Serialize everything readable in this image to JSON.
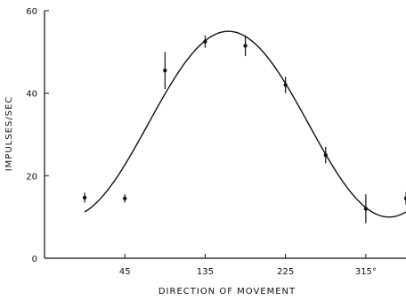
{
  "chart_data": {
    "type": "scatter",
    "title": "",
    "xlabel": "DIRECTION OF MOVEMENT",
    "ylabel": "IMPULSES/SEC",
    "xlim": [
      -45,
      360
    ],
    "ylim": [
      0,
      60
    ],
    "x_ticks": [
      {
        "value": 45,
        "label": "45"
      },
      {
        "value": 135,
        "label": "135"
      },
      {
        "value": 225,
        "label": "225"
      },
      {
        "value": 315,
        "label": "315°"
      }
    ],
    "y_ticks": [
      {
        "value": 0,
        "label": "0"
      },
      {
        "value": 20,
        "label": "20"
      },
      {
        "value": 40,
        "label": "40"
      },
      {
        "value": 60,
        "label": "60"
      }
    ],
    "grid": false,
    "legend": "none",
    "series": [
      {
        "type": "points_with_error_bars",
        "points": [
          {
            "x": 0,
            "y": 14.7,
            "err": 1.2
          },
          {
            "x": 45,
            "y": 14.5,
            "err": 1.0
          },
          {
            "x": 90,
            "y": 45.5,
            "err": 4.5
          },
          {
            "x": 135,
            "y": 52.5,
            "err": 1.5
          },
          {
            "x": 180,
            "y": 51.5,
            "err": 2.5
          },
          {
            "x": 225,
            "y": 42,
            "err": 2.0
          },
          {
            "x": 270,
            "y": 25,
            "err": 2.0
          },
          {
            "x": 315,
            "y": 12,
            "err": 3.5
          },
          {
            "x": 360,
            "y": 14.5,
            "err": 1.5
          }
        ]
      },
      {
        "type": "fitted_cosine",
        "model": "y = b0 + b1*cos(x - theta)",
        "b0": 32.5,
        "b1": 22.5,
        "theta_deg": 161,
        "x_range": [
          0,
          360
        ]
      }
    ]
  }
}
